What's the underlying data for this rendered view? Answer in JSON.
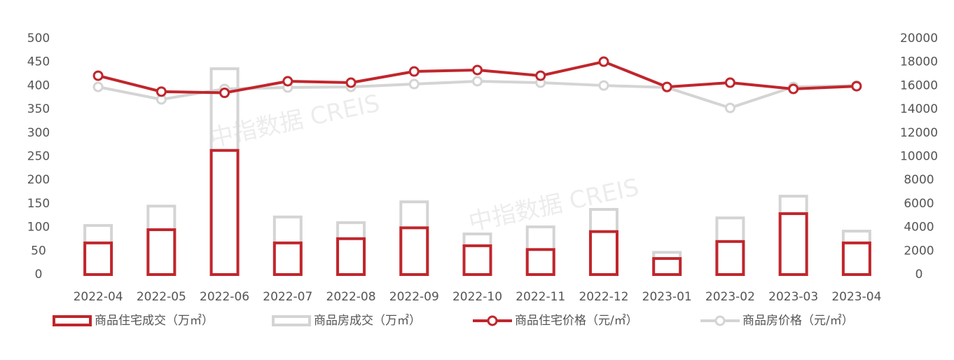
{
  "chart_data": {
    "type": "combo",
    "categories": [
      "2022-04",
      "2022-05",
      "2022-06",
      "2022-07",
      "2022-08",
      "2022-09",
      "2022-10",
      "2022-11",
      "2022-12",
      "2023-01",
      "2023-02",
      "2023-03",
      "2023-04"
    ],
    "series": [
      {
        "name": "商品住宅成交（万㎡）",
        "kind": "bar",
        "color": "#c0262c",
        "values": [
          67,
          95,
          263,
          67,
          76,
          99,
          61,
          53,
          91,
          34,
          70,
          129,
          67
        ]
      },
      {
        "name": "商品房成交（万㎡）",
        "kind": "bar",
        "color": "#d4d4d4",
        "values": [
          104,
          145,
          436,
          122,
          110,
          154,
          86,
          101,
          138,
          47,
          120,
          166,
          92
        ]
      },
      {
        "name": "商品住宅价格（元/㎡）",
        "kind": "line",
        "axis": "y2",
        "color": "#c0262c",
        "values": [
          16850,
          15500,
          15400,
          16380,
          16260,
          17210,
          17330,
          16850,
          18040,
          15900,
          16260,
          15730,
          15960
        ]
      },
      {
        "name": "商品房价格（元/㎡）",
        "kind": "line",
        "axis": "y2",
        "color": "#d4d4d4",
        "values": [
          15900,
          14840,
          15730,
          15850,
          15900,
          16140,
          16380,
          16260,
          16020,
          15850,
          14120,
          15900,
          16020
        ]
      }
    ],
    "ylim": [
      0,
      500
    ],
    "yticks": [
      0,
      50,
      100,
      150,
      200,
      250,
      300,
      350,
      400,
      450,
      500
    ],
    "y2lim": [
      0,
      20000
    ],
    "y2ticks": [
      0,
      2000,
      4000,
      6000,
      8000,
      10000,
      12000,
      14000,
      16000,
      18000,
      20000
    ],
    "watermarks": [
      "中指数据 CREIS",
      "中指数据 CREIS"
    ]
  }
}
